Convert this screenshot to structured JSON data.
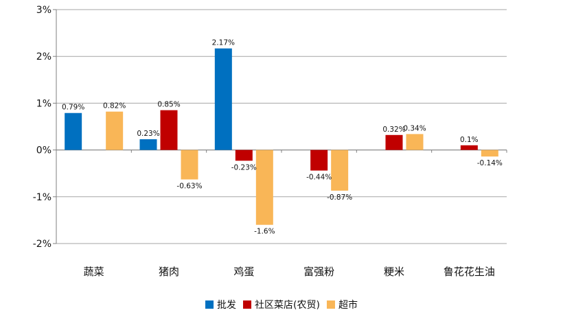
{
  "chart_data": {
    "type": "bar",
    "categories": [
      "蔬菜",
      "猪肉",
      "鸡蛋",
      "富强粉",
      "粳米",
      "鲁花花生油"
    ],
    "series": [
      {
        "name": "批发",
        "color": "#0070c0",
        "values": [
          0.79,
          0.23,
          2.17,
          null,
          null,
          null
        ],
        "labels": [
          "0.79%",
          "0.23%",
          "2.17%",
          "",
          "",
          ""
        ]
      },
      {
        "name": "社区菜店(农贸)",
        "color": "#c00000",
        "values": [
          null,
          0.85,
          -0.23,
          -0.44,
          0.32,
          0.1
        ],
        "labels": [
          "",
          "0.85%",
          "-0.23%",
          "-0.44%",
          "0.32%",
          "0.1%"
        ]
      },
      {
        "name": "超市",
        "color": "#f9b657",
        "values": [
          0.82,
          -0.63,
          -1.6,
          -0.87,
          0.34,
          -0.14
        ],
        "labels": [
          "0.82%",
          "-0.63%",
          "-1.6%",
          "-0.87%",
          "0.34%",
          "-0.14%"
        ]
      }
    ],
    "yticks": [
      3,
      2,
      1,
      0,
      -1,
      -2
    ],
    "ytick_labels": [
      "3%",
      "2%",
      "1%",
      "0%",
      "-1%",
      "-2%"
    ],
    "ylim": [
      -2,
      3
    ],
    "grid": true,
    "legend_position": "bottom-center"
  }
}
